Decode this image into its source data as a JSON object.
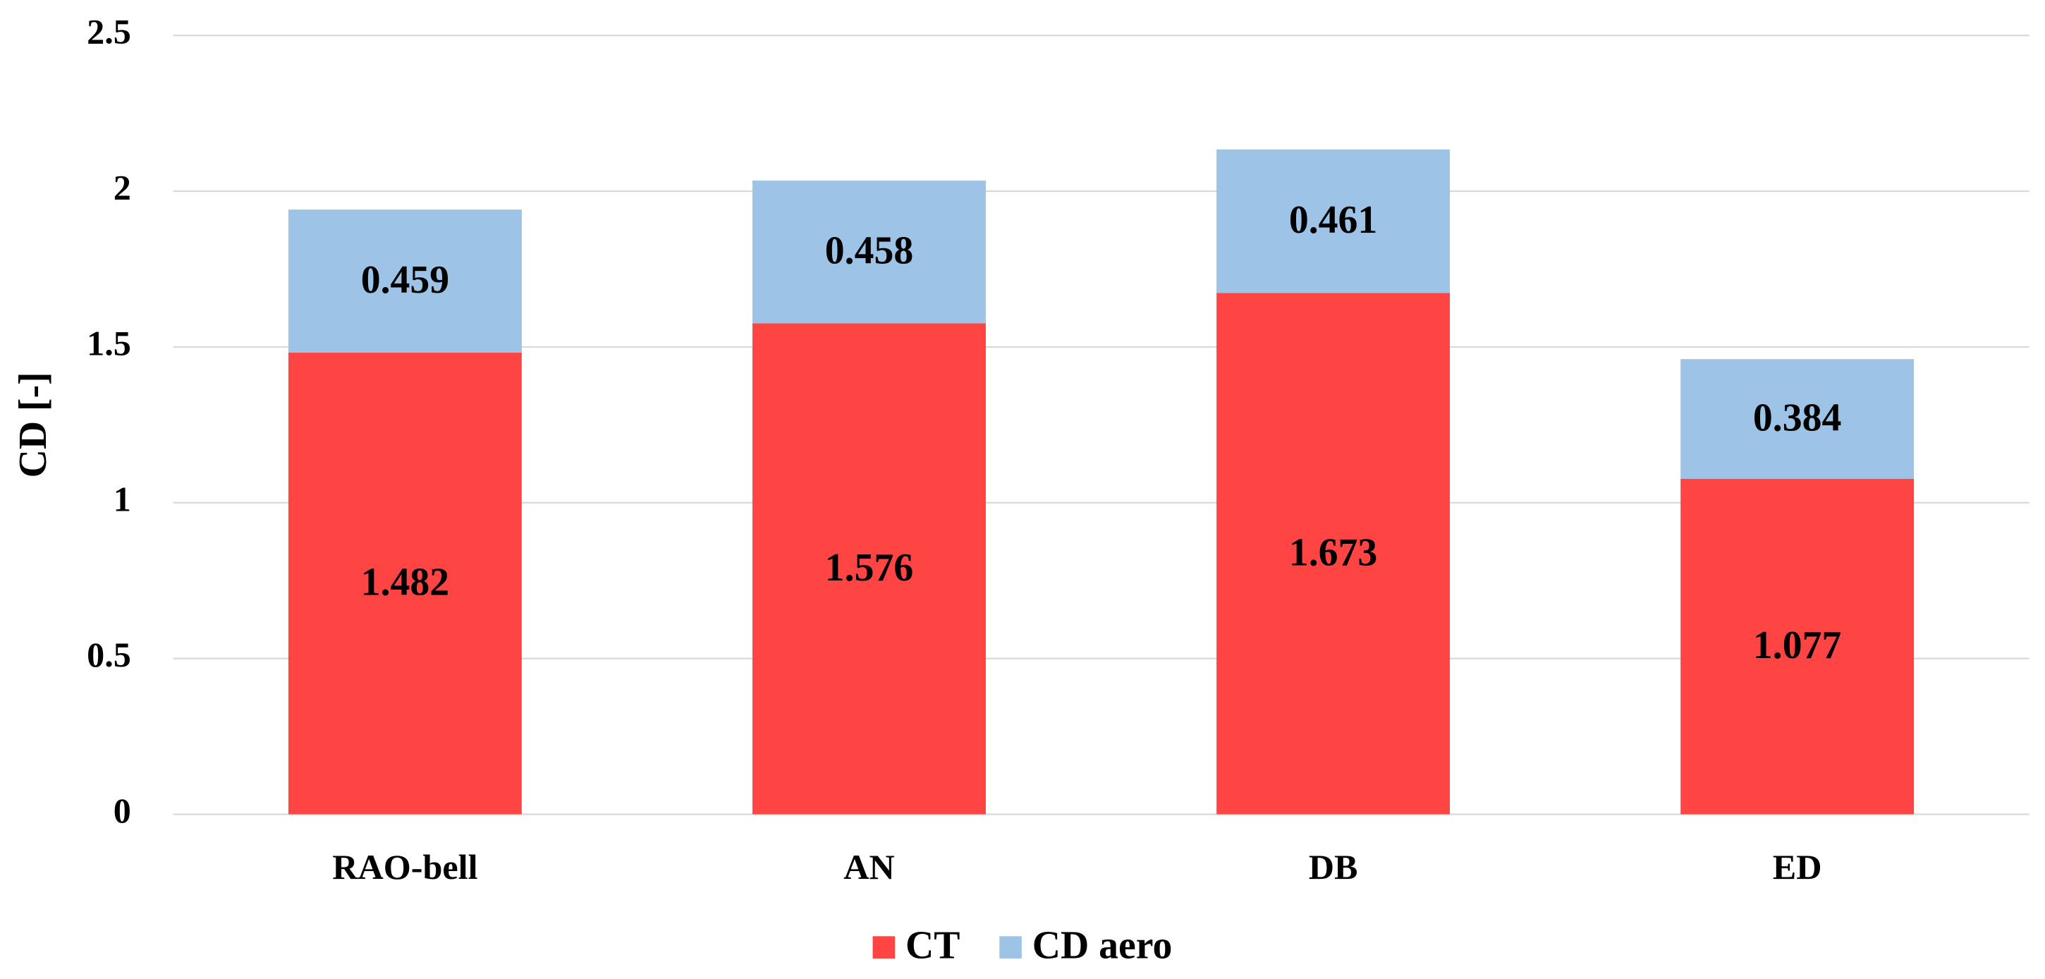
{
  "chart_data": {
    "type": "stacked_bar",
    "y_label": "CD [-]",
    "categories": [
      "RAO-bell",
      "AN",
      "DB",
      "ED"
    ],
    "series": [
      {
        "name": "CT",
        "color": "#ff4444",
        "values": [
          1.482,
          1.576,
          1.673,
          1.077
        ]
      },
      {
        "name": "CD aero",
        "color": "#9dc3e6",
        "values": [
          0.459,
          0.458,
          0.461,
          0.384
        ]
      }
    ],
    "ylim": [
      0,
      2.5
    ],
    "yticks": [
      0,
      0.5,
      1,
      1.5,
      2,
      2.5
    ],
    "grid": true,
    "legend": "bottom"
  }
}
